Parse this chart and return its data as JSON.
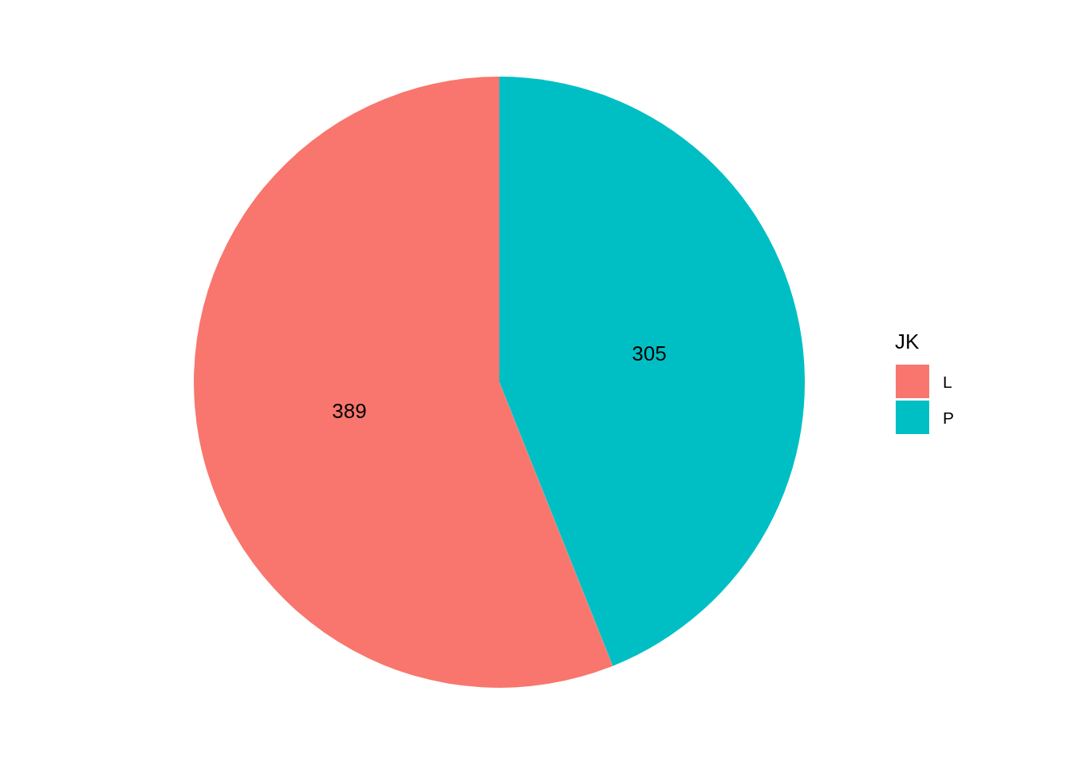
{
  "chart_data": {
    "type": "pie",
    "legend_title": "JK",
    "categories": [
      "L",
      "P"
    ],
    "values": [
      389,
      305
    ],
    "colors": [
      "#f8766d",
      "#00bfc4"
    ],
    "data_labels": true,
    "legend": "right"
  }
}
